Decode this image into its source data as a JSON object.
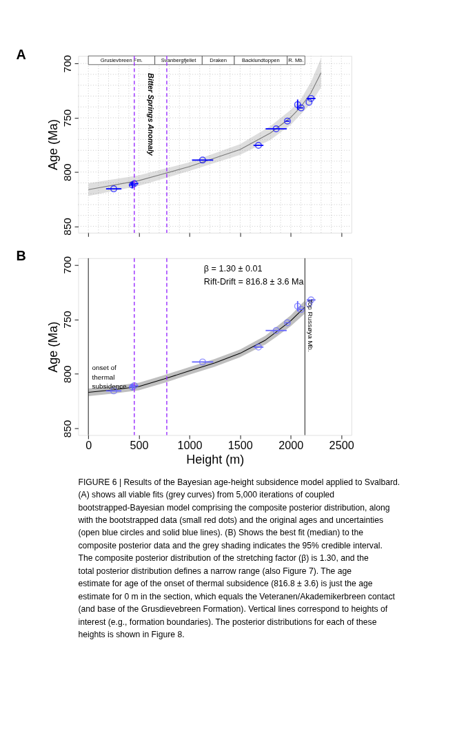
{
  "chart_data": [
    {
      "type": "scatter",
      "title": "A",
      "ylabel": "Age (Ma)",
      "xlim": [
        -100,
        2600
      ],
      "ylim": [
        856,
        693
      ],
      "xticks": [
        0,
        {
          "value": 100,
          "label": null
        },
        {
          "value": 200,
          "label": null
        },
        {
          "value": 300,
          "label": null
        },
        {
          "value": 400,
          "label": null
        },
        500,
        {
          "value": 600,
          "label": null
        },
        {
          "value": 700,
          "label": null
        },
        {
          "value": 800,
          "label": null
        },
        {
          "value": 900,
          "label": null
        },
        1000,
        {
          "value": 1100,
          "label": null
        },
        {
          "value": 1200,
          "label": null
        },
        {
          "value": 1300,
          "label": null
        },
        {
          "value": 1400,
          "label": null
        },
        1500,
        {
          "value": 1600,
          "label": null
        },
        {
          "value": 1700,
          "label": null
        },
        {
          "value": 1800,
          "label": null
        },
        {
          "value": 1900,
          "label": null
        },
        2000,
        {
          "value": 2100,
          "label": null
        },
        {
          "value": 2200,
          "label": null
        },
        {
          "value": 2300,
          "label": null
        },
        {
          "value": 2400,
          "label": null
        },
        2500
      ],
      "yticks": [
        700,
        {
          "value": 710,
          "label": null
        },
        {
          "value": 720,
          "label": null
        },
        {
          "value": 730,
          "label": null
        },
        {
          "value": 740,
          "label": null
        },
        750,
        {
          "value": 760,
          "label": null
        },
        {
          "value": 770,
          "label": null
        },
        {
          "value": 780,
          "label": null
        },
        {
          "value": 790,
          "label": null
        },
        800,
        {
          "value": 810,
          "label": null
        },
        {
          "value": 820,
          "label": null
        },
        {
          "value": 830,
          "label": null
        },
        {
          "value": 840,
          "label": null
        },
        850
      ],
      "tick_labels": "y",
      "grid": true,
      "marker": "circle",
      "series": [
        {
          "type": "line",
          "marker": "none",
          "color": "#7a7a7a",
          "x": [
            0,
            500,
            1000,
            1500,
            1800,
            2000,
            2100,
            2200,
            2300
          ],
          "values": [
            816.2,
            807.9,
            795,
            779.3,
            764,
            749.7,
            739.9,
            727,
            708.5
          ],
          "lower": [
            822.1,
            812.8,
            799,
            784.2,
            770.4,
            756.6,
            746.7,
            736.9,
            722
          ],
          "upper": [
            810.3,
            803,
            791,
            774.4,
            757.6,
            742.8,
            733,
            717,
            695
          ]
        },
        {
          "type": "scatter",
          "color": "#0000ff",
          "x": [
            251,
            434,
            454,
            1129,
            1681,
            1856,
            1967,
            2068,
            2103,
            2181,
            2201
          ],
          "values": [
            815.5,
            812,
            810.7,
            789,
            775.4,
            760.2,
            753.1,
            737.9,
            740.9,
            735.7,
            732.2
          ],
          "xerrors": [
            76,
            30,
            40,
            105,
            49,
            104,
            20,
            null,
            20,
            null,
            44
          ],
          "errors": [
            null,
            3,
            null,
            null,
            null,
            null,
            null,
            4.7,
            null,
            null,
            null
          ]
        }
      ],
      "ref_lines": [
        {
          "axis": "x",
          "value": 454,
          "color": "#9b30ff",
          "line_style": "dashed"
        },
        {
          "axis": "x",
          "value": 775,
          "color": "#9b30ff",
          "line_style": "dashed"
        }
      ],
      "bands": [
        {
          "axis": "x",
          "from": 0,
          "to": 657,
          "label": "Grusievbreen Fm."
        },
        {
          "axis": "x",
          "from": 657,
          "to": 1125,
          "label": "Svanbergfjellet"
        },
        {
          "axis": "x",
          "from": 1125,
          "to": 1443,
          "label": "Draken"
        },
        {
          "axis": "x",
          "from": 1443,
          "to": 1965,
          "label": "Backlundtoppen"
        },
        {
          "axis": "x",
          "from": 1965,
          "to": 2140,
          "label": "R. Mb."
        }
      ],
      "annotations": [
        "Bitter Springs Anomaly"
      ]
    },
    {
      "type": "line",
      "title": "B",
      "xlabel": "Height (m)",
      "ylabel": "Age (Ma)",
      "xlim": [
        -100,
        2600
      ],
      "ylim": [
        856,
        694
      ],
      "xticks": [
        0,
        500,
        1000,
        1500,
        2000,
        2500
      ],
      "yticks": [
        700,
        750,
        800,
        850
      ],
      "marker": "circle",
      "series": [
        {
          "type": "line",
          "marker": "none",
          "color": "#000000",
          "x": [
            0,
            250,
            500,
            750,
            1000,
            1250,
            1500,
            1750,
            1850,
            2000,
            2135
          ],
          "values": [
            816.8,
            814.5,
            811.5,
            804.6,
            797.1,
            789.8,
            781.1,
            769,
            762,
            751.3,
            739.1
          ],
          "lower": [
            820.3,
            818,
            815,
            808.1,
            800.6,
            793.3,
            784.6,
            773,
            766.5,
            756.3,
            745.1
          ],
          "upper": [
            813.3,
            811,
            808,
            801.1,
            793.6,
            786.3,
            777.6,
            765,
            757.5,
            746.3,
            733.1
          ]
        },
        {
          "type": "scatter",
          "color": "#6666ff",
          "x": [
            251,
            434,
            454,
            1129,
            1681,
            1856,
            1967,
            2068,
            2103,
            2181,
            2201
          ],
          "values": [
            815.5,
            812,
            810.7,
            789,
            775.4,
            760.2,
            753.1,
            737.9,
            740.9,
            735.7,
            732.2
          ],
          "xerrors": [
            76,
            30,
            40,
            105,
            49,
            104,
            20,
            null,
            20,
            null,
            44
          ],
          "errors": [
            null,
            3,
            null,
            null,
            null,
            null,
            null,
            4.7,
            null,
            null,
            null
          ]
        }
      ],
      "ref_lines": [
        {
          "axis": "x",
          "value": 0,
          "color": "#000000",
          "line_style": "solid"
        },
        {
          "axis": "x",
          "value": 2140,
          "color": "#000000",
          "line_style": "solid",
          "label": "Top Russøya Mb."
        },
        {
          "axis": "x",
          "value": 454,
          "color": "#9b30ff",
          "line_style": "dashed"
        },
        {
          "axis": "x",
          "value": 775,
          "color": "#9b30ff",
          "line_style": "dashed"
        }
      ],
      "annotations": [
        "β = 1.30 ± 0.01",
        "Rift-Drift = 816.8 ± 3.6 Ma",
        {
          "text": "onset of thermal subsidence",
          "x": 0,
          "y": 816.8
        }
      ]
    },
    {
      "type": "other",
      "annotations": [
        "FIGURE 6 | Results of the Bayesian age-height subsidence model applied to Svalbard. (A) shows all viable fits (grey curves) from 5,000 iterations of coupled bootstrapped-Bayesian model comprising the composite posterior distribution, along with the bootstrapped data (small red dots) and the original ages and uncertainties (open blue circles and solid blue lines). (B) Shows the best fit (median) to the composite posterior data and the grey shading indicates the 95% credible interval. The composite posterior distribution of the stretching factor (β) is 1.30, and the total posterior distribution defines a narrow range (also Figure 7). The age estimate for age of the onset of thermal subsidence (816.8 ± 3.6) is just the age estimate for 0 m in the section, which equals the Veteranen/Akademikerbreen contact (and base of the Grusdievebreen Formation). Vertical lines correspond to heights of interest (e.g., formation boundaries). The posterior distributions for each of these heights is shown in Figure 8."
      ]
    }
  ]
}
